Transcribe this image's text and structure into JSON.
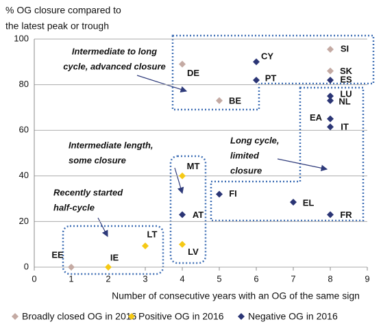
{
  "chart_data": {
    "type": "scatter",
    "y_title": [
      "% OG closure compared to",
      "the latest peak or trough"
    ],
    "x_title": "Number of consecutive years with an OG of the same sign",
    "xlim": [
      0,
      9
    ],
    "xticks": [
      0,
      1,
      2,
      3,
      4,
      5,
      6,
      7,
      8,
      9
    ],
    "ylim": [
      0,
      100
    ],
    "yticks": [
      0,
      20,
      40,
      60,
      80,
      100
    ],
    "grid": true,
    "legend": "bottom",
    "series": [
      {
        "name": "Broadly closed OG in 2016",
        "color": "#c4aaa3",
        "labels": [
          "EE",
          "DE",
          "BE",
          "SI",
          "SK"
        ],
        "x": [
          1,
          4,
          5,
          8,
          8
        ],
        "values": [
          0,
          89,
          73,
          95.5,
          86
        ]
      },
      {
        "name": "Positive OG in 2016",
        "color": "#f5c915",
        "labels": [
          "IE",
          "LT",
          "MT",
          "LV"
        ],
        "x": [
          2,
          3,
          4,
          4
        ],
        "values": [
          0,
          9.3,
          40,
          10
        ]
      },
      {
        "name": "Negative OG in 2016",
        "color": "#2b3575",
        "labels": [
          "CY",
          "PT",
          "FI",
          "AT",
          "EL",
          "FR",
          "ES",
          "LU",
          "NL",
          "EA",
          "IT"
        ],
        "label_colors": [
          "#111",
          "#111",
          "#111",
          "#111",
          "#111",
          "#111",
          "#111",
          "#111",
          "#111",
          "#e0201b",
          "#111"
        ],
        "x": [
          6,
          6,
          5,
          4,
          7,
          8,
          8,
          8,
          8,
          8,
          8
        ],
        "values": [
          90,
          82,
          32,
          23,
          28.5,
          23,
          82,
          75,
          73,
          65,
          61.5
        ]
      }
    ],
    "annotations": [
      {
        "lines": [
          "Intermediate to long",
          "cycle, advanced closure"
        ]
      },
      {
        "lines": [
          "Intermediate length,",
          "some closure"
        ]
      },
      {
        "lines": [
          "Recently started",
          "half-cycle"
        ]
      },
      {
        "lines": [
          "Long cycle,",
          "limited",
          "closure"
        ]
      }
    ]
  }
}
